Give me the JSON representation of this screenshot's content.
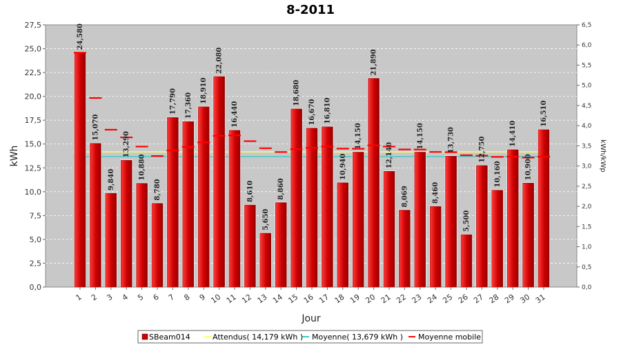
{
  "chart_data": {
    "type": "bar",
    "title": "8-2011",
    "xlabel": "Jour",
    "ylabel": "kWh",
    "y2label": "kWh/kWp",
    "ylim": [
      0,
      27.5
    ],
    "y2lim": [
      0,
      6.5
    ],
    "yticks": [
      "0,0",
      "2,5",
      "5,0",
      "7,5",
      "10,0",
      "12,5",
      "15,0",
      "17,5",
      "20,0",
      "22,5",
      "25,0",
      "27,5"
    ],
    "y2ticks": [
      "0,0",
      "0,5",
      "1,0",
      "1,5",
      "2,0",
      "2,5",
      "3,0",
      "3,5",
      "4,0",
      "4,5",
      "5,0",
      "5,5",
      "6,0",
      "6,5"
    ],
    "categories": [
      "1",
      "2",
      "3",
      "4",
      "5",
      "6",
      "7",
      "8",
      "9",
      "10",
      "11",
      "12",
      "13",
      "14",
      "15",
      "16",
      "17",
      "18",
      "19",
      "20",
      "21",
      "22",
      "23",
      "24",
      "25",
      "26",
      "27",
      "28",
      "29",
      "30",
      "31"
    ],
    "series": [
      {
        "name": "SBeam014",
        "color": "#dd0000",
        "values": [
          24.58,
          15.07,
          9.84,
          13.29,
          10.88,
          8.78,
          17.79,
          17.36,
          18.91,
          22.08,
          16.44,
          8.61,
          5.65,
          8.86,
          18.68,
          16.67,
          16.81,
          10.94,
          14.15,
          21.89,
          12.14,
          8.069,
          14.15,
          8.46,
          13.73,
          5.5,
          12.75,
          10.16,
          14.41,
          10.9,
          16.51
        ],
        "labels": [
          "24,580",
          "15,070",
          "9,840",
          "13,290",
          "10,880",
          "8,780",
          "17,790",
          "17,360",
          "18,910",
          "22,080",
          "16,440",
          "8,610",
          "5,650",
          "8,860",
          "18,680",
          "16,670",
          "16,810",
          "10,940",
          "14,150",
          "21,890",
          "12,140",
          "8,069",
          "14,150",
          "8,460",
          "13,730",
          "5,500",
          "12,750",
          "10,160",
          "14,410",
          "10,900",
          "16,510"
        ]
      },
      {
        "name": "Moyenne mobile",
        "color": "#ff0000",
        "values": [
          24.58,
          19.83,
          16.5,
          15.7,
          14.73,
          13.74,
          14.32,
          14.7,
          15.17,
          15.86,
          15.91,
          15.3,
          14.56,
          14.16,
          14.46,
          14.6,
          14.73,
          14.52,
          14.5,
          14.86,
          14.73,
          14.43,
          14.42,
          14.17,
          14.15,
          13.82,
          13.78,
          13.65,
          13.68,
          13.58,
          13.68
        ]
      }
    ],
    "reference_lines": [
      {
        "name": "Attendus( 14,179 kWh )",
        "value": 14.179,
        "color": "#ffff66"
      },
      {
        "name": "Moyenne( 13,679 kWh )",
        "value": 13.679,
        "color": "#33cccc"
      }
    ],
    "legend": {
      "placement": "bottom",
      "items": [
        {
          "label": "SBeam014",
          "color": "#cc0000",
          "shape": "square"
        },
        {
          "label": "Attendus( 14,179 kWh )",
          "color": "#ffff66",
          "shape": "line"
        },
        {
          "label": "Moyenne( 13,679 kWh )",
          "color": "#33cccc",
          "shape": "line"
        },
        {
          "label": "Moyenne mobile",
          "color": "#ff0000",
          "shape": "line"
        }
      ]
    },
    "grid": true,
    "plot_background": "#c8c8c8"
  }
}
